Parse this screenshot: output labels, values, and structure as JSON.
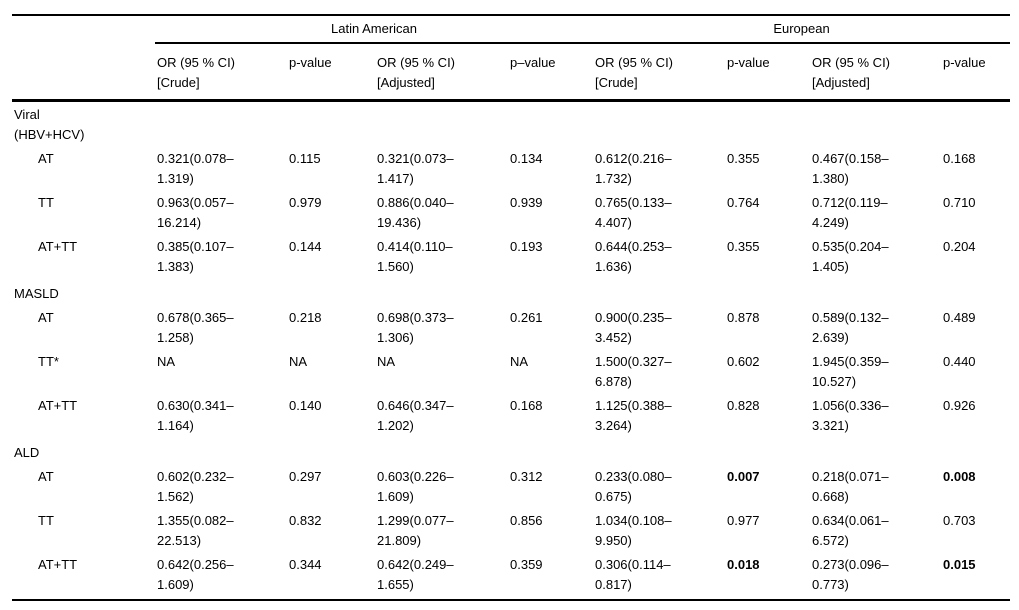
{
  "table": {
    "groups": [
      {
        "label": "Latin American"
      },
      {
        "label": "European"
      }
    ],
    "subheaders": [
      "OR (95 % CI)\n[Crude]",
      "p-value",
      "OR (95 % CI)\n[Adjusted]",
      "p–value",
      "OR (95 % CI)\n[Crude]",
      "p-value",
      "OR (95 % CI)\n[Adjusted]",
      "p-value"
    ],
    "sections": [
      {
        "label": "Viral\n(HBV+HCV)",
        "rows": [
          {
            "label": "AT",
            "cells": [
              "0.321(0.078–\n1.319)",
              "0.115",
              "0.321(0.073–\n1.417)",
              "0.134",
              "0.612(0.216–\n1.732)",
              "0.355",
              "0.467(0.158–\n1.380)",
              "0.168"
            ],
            "bold": [
              false,
              false,
              false,
              false,
              false,
              false,
              false,
              false
            ]
          },
          {
            "label": "TT",
            "cells": [
              "0.963(0.057–\n16.214)",
              "0.979",
              "0.886(0.040–\n19.436)",
              "0.939",
              "0.765(0.133–\n4.407)",
              "0.764",
              "0.712(0.119–\n4.249)",
              "0.710"
            ],
            "bold": [
              false,
              false,
              false,
              false,
              false,
              false,
              false,
              false
            ]
          },
          {
            "label": "AT+TT",
            "cells": [
              "0.385(0.107–\n1.383)",
              "0.144",
              "0.414(0.110–\n1.560)",
              "0.193",
              "0.644(0.253–\n1.636)",
              "0.355",
              "0.535(0.204–\n1.405)",
              "0.204"
            ],
            "bold": [
              false,
              false,
              false,
              false,
              false,
              false,
              false,
              false
            ]
          }
        ]
      },
      {
        "label": "MASLD",
        "rows": [
          {
            "label": "AT",
            "cells": [
              "0.678(0.365–\n1.258)",
              "0.218",
              "0.698(0.373–\n1.306)",
              "0.261",
              "0.900(0.235–\n3.452)",
              "0.878",
              "0.589(0.132–\n2.639)",
              "0.489"
            ],
            "bold": [
              false,
              false,
              false,
              false,
              false,
              false,
              false,
              false
            ]
          },
          {
            "label": "TT*",
            "cells": [
              "NA",
              "NA",
              "NA",
              "NA",
              "1.500(0.327–\n6.878)",
              "0.602",
              "1.945(0.359–\n10.527)",
              "0.440"
            ],
            "bold": [
              false,
              false,
              false,
              false,
              false,
              false,
              false,
              false
            ]
          },
          {
            "label": "AT+TT",
            "cells": [
              "0.630(0.341–\n1.164)",
              "0.140",
              "0.646(0.347–\n1.202)",
              "0.168",
              "1.125(0.388–\n3.264)",
              "0.828",
              "1.056(0.336–\n3.321)",
              "0.926"
            ],
            "bold": [
              false,
              false,
              false,
              false,
              false,
              false,
              false,
              false
            ]
          }
        ]
      },
      {
        "label": "ALD",
        "rows": [
          {
            "label": "AT",
            "cells": [
              "0.602(0.232–\n1.562)",
              "0.297",
              "0.603(0.226–\n1.609)",
              "0.312",
              "0.233(0.080–\n0.675)",
              "0.007",
              "0.218(0.071–\n0.668)",
              "0.008"
            ],
            "bold": [
              false,
              false,
              false,
              false,
              false,
              true,
              false,
              true
            ]
          },
          {
            "label": "TT",
            "cells": [
              "1.355(0.082–\n22.513)",
              "0.832",
              "1.299(0.077–\n21.809)",
              "0.856",
              "1.034(0.108–\n9.950)",
              "0.977",
              "0.634(0.061–\n6.572)",
              "0.703"
            ],
            "bold": [
              false,
              false,
              false,
              false,
              false,
              false,
              false,
              false
            ]
          },
          {
            "label": "AT+TT",
            "cells": [
              "0.642(0.256–\n1.609)",
              "0.344",
              "0.642(0.249–\n1.655)",
              "0.359",
              "0.306(0.114–\n0.817)",
              "0.018",
              "0.273(0.096–\n0.773)",
              "0.015"
            ],
            "bold": [
              false,
              false,
              false,
              false,
              false,
              true,
              false,
              true
            ]
          }
        ]
      }
    ],
    "colors": {
      "text": "#000000",
      "background": "#ffffff",
      "rule": "#000000"
    }
  }
}
